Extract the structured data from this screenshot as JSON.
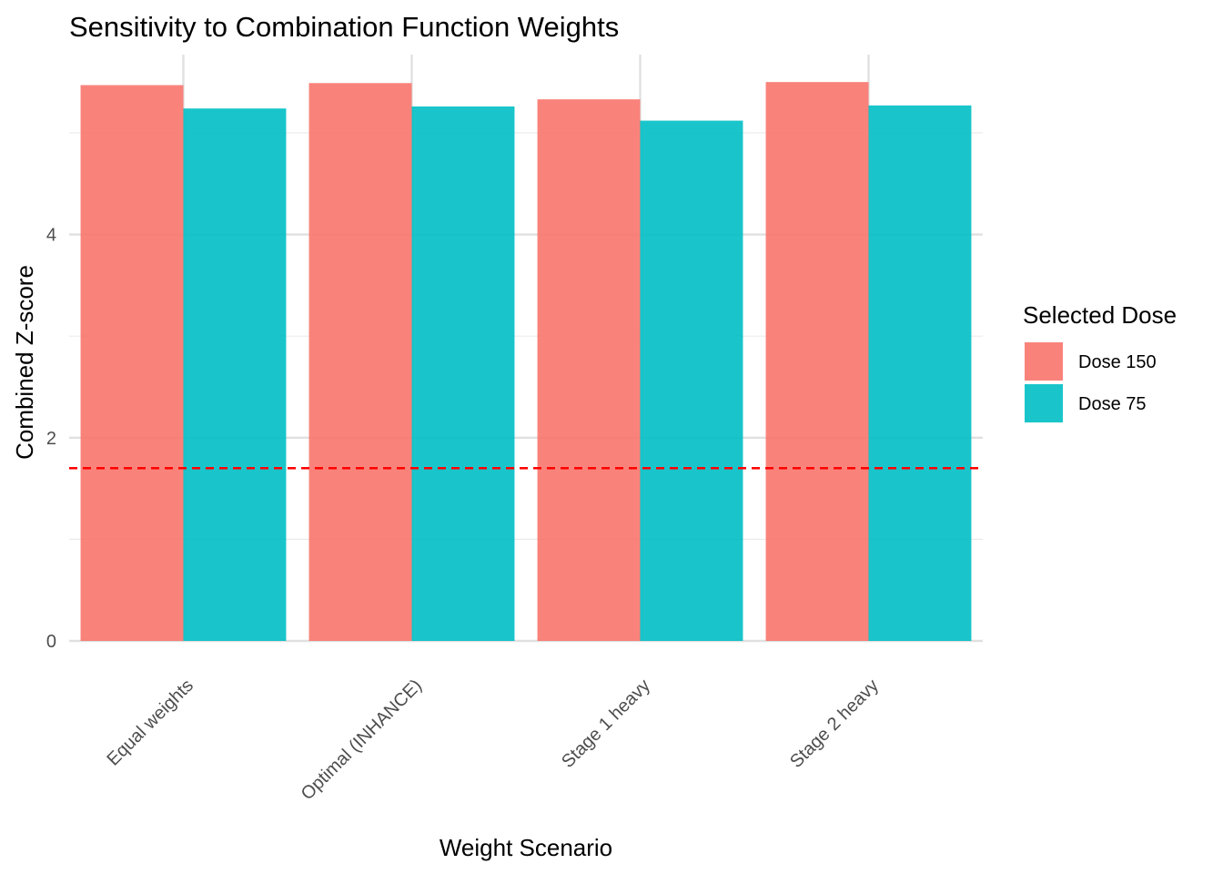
{
  "chart_data": {
    "type": "bar",
    "title": "Sensitivity to Combination Function Weights",
    "xlabel": "Weight Scenario",
    "ylabel": "Combined Z-score",
    "categories": [
      "Equal weights",
      "Optimal (INHANCE)",
      "Stage 1 heavy",
      "Stage 2 heavy"
    ],
    "series": [
      {
        "name": "Dose 150",
        "color": "#F8766D",
        "values": [
          5.47,
          5.49,
          5.33,
          5.5
        ]
      },
      {
        "name": "Dose 75",
        "color": "#00BFC4",
        "values": [
          5.24,
          5.26,
          5.12,
          5.27
        ]
      }
    ],
    "ylim": [
      0,
      5.77
    ],
    "y_ticks": [
      0,
      2,
      4
    ],
    "reference_line": {
      "y": 1.7,
      "color": "#FF0000",
      "style": "dashed"
    },
    "legend": {
      "title": "Selected Dose",
      "position": "right"
    },
    "grid": true,
    "x_tick_rotation": "45 degrees"
  }
}
